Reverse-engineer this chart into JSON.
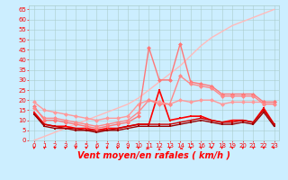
{
  "xlabel": "Vent moyen/en rafales ( km/h )",
  "bg_color": "#cceeff",
  "grid_color": "#aacccc",
  "xlim": [
    -0.5,
    23.5
  ],
  "ylim": [
    0,
    67
  ],
  "yticks": [
    0,
    5,
    10,
    15,
    20,
    25,
    30,
    35,
    40,
    45,
    50,
    55,
    60,
    65
  ],
  "xticks": [
    0,
    1,
    2,
    3,
    4,
    5,
    6,
    7,
    8,
    9,
    10,
    11,
    12,
    13,
    14,
    15,
    16,
    17,
    18,
    19,
    20,
    21,
    22,
    23
  ],
  "series": [
    {
      "x": [
        0,
        1,
        2,
        3,
        4,
        5,
        6,
        7,
        8,
        9,
        10,
        11,
        12,
        13,
        14,
        15,
        16,
        17,
        18,
        19,
        20,
        21,
        22,
        23
      ],
      "y": [
        14,
        8,
        7,
        7,
        6,
        6,
        5,
        6,
        6,
        7,
        8,
        8,
        25,
        10,
        11,
        12,
        12,
        10,
        9,
        10,
        10,
        9,
        16,
        8
      ],
      "color": "#ff0000",
      "lw": 1.2,
      "marker": "s",
      "ms": 2.0
    },
    {
      "x": [
        0,
        1,
        2,
        3,
        4,
        5,
        6,
        7,
        8,
        9,
        10,
        11,
        12,
        13,
        14,
        15,
        16,
        17,
        18,
        19,
        20,
        21,
        22,
        23
      ],
      "y": [
        13,
        8,
        7,
        6,
        6,
        5,
        5,
        5,
        6,
        7,
        8,
        8,
        8,
        8,
        9,
        10,
        11,
        10,
        9,
        9,
        10,
        9,
        15,
        8
      ],
      "color": "#cc0000",
      "lw": 1.0,
      "marker": "s",
      "ms": 1.8
    },
    {
      "x": [
        0,
        1,
        2,
        3,
        4,
        5,
        6,
        7,
        8,
        9,
        10,
        11,
        12,
        13,
        14,
        15,
        16,
        17,
        18,
        19,
        20,
        21,
        22,
        23
      ],
      "y": [
        13,
        7,
        6,
        6,
        5,
        5,
        4,
        5,
        5,
        6,
        7,
        7,
        7,
        7,
        8,
        9,
        10,
        9,
        8,
        8,
        9,
        8,
        14,
        7
      ],
      "color": "#990000",
      "lw": 1.0,
      "marker": "s",
      "ms": 1.8
    },
    {
      "x": [
        0,
        1,
        2,
        3,
        4,
        5,
        6,
        7,
        8,
        9,
        10,
        11,
        12,
        13,
        14,
        15,
        16,
        17,
        18,
        19,
        20,
        21,
        22,
        23
      ],
      "y": [
        19,
        15,
        14,
        13,
        12,
        11,
        10,
        11,
        11,
        12,
        18,
        20,
        19,
        18,
        20,
        19,
        20,
        20,
        18,
        19,
        19,
        19,
        19,
        19
      ],
      "color": "#ff9999",
      "lw": 1.0,
      "marker": "D",
      "ms": 2.5
    },
    {
      "x": [
        0,
        1,
        2,
        3,
        4,
        5,
        6,
        7,
        8,
        9,
        10,
        11,
        12,
        13,
        14,
        15,
        16,
        17,
        18,
        19,
        20,
        21,
        22,
        23
      ],
      "y": [
        17,
        10,
        10,
        9,
        8,
        7,
        6,
        7,
        8,
        9,
        12,
        46,
        30,
        30,
        48,
        29,
        28,
        27,
        23,
        23,
        23,
        23,
        19,
        19
      ],
      "color": "#ff7777",
      "lw": 1.0,
      "marker": "D",
      "ms": 2.5
    },
    {
      "x": [
        0,
        1,
        2,
        3,
        4,
        5,
        6,
        7,
        8,
        9,
        10,
        11,
        12,
        13,
        14,
        15,
        16,
        17,
        18,
        19,
        20,
        21,
        22,
        23
      ],
      "y": [
        0,
        2,
        4,
        6,
        8,
        10,
        12,
        14,
        16,
        18,
        21,
        25,
        29,
        33,
        37,
        42,
        47,
        51,
        54,
        57,
        59,
        61,
        63,
        65
      ],
      "color": "#ffbbbb",
      "lw": 1.0,
      "marker": null,
      "ms": 0
    },
    {
      "x": [
        0,
        1,
        2,
        3,
        4,
        5,
        6,
        7,
        8,
        9,
        10,
        11,
        12,
        13,
        14,
        15,
        16,
        17,
        18,
        19,
        20,
        21,
        22,
        23
      ],
      "y": [
        16,
        11,
        11,
        10,
        9,
        8,
        7,
        8,
        9,
        10,
        14,
        20,
        18,
        18,
        32,
        28,
        27,
        26,
        22,
        22,
        22,
        22,
        18,
        18
      ],
      "color": "#ff8888",
      "lw": 1.0,
      "marker": "D",
      "ms": 2.5
    }
  ],
  "arrow_color": "#ff0000",
  "xlabel_color": "#ff0000",
  "xlabel_fontsize": 7,
  "tick_color": "#ff0000",
  "tick_fontsize": 5,
  "arrow_directions": [
    180,
    180,
    180,
    180,
    180,
    180,
    180,
    180,
    180,
    180,
    180,
    90,
    0,
    180,
    270,
    180,
    180,
    180,
    180,
    180,
    180,
    180,
    180,
    135
  ]
}
